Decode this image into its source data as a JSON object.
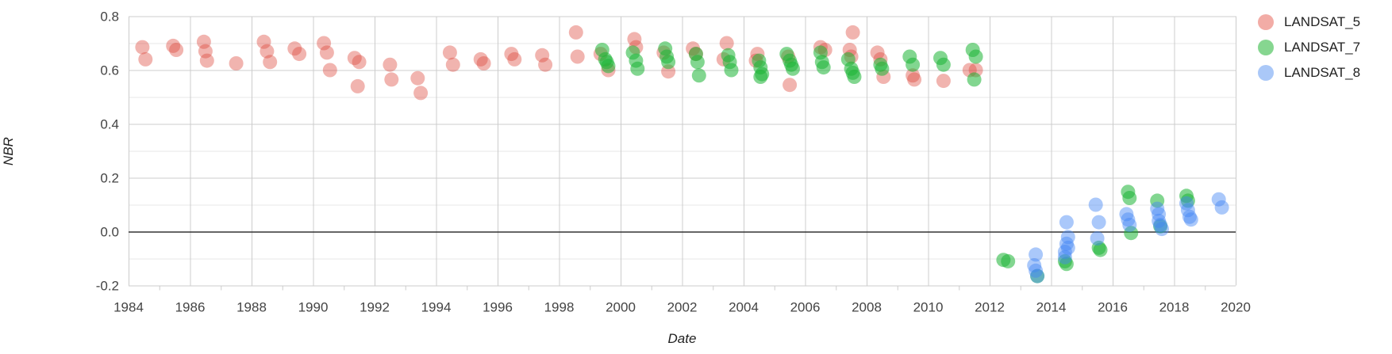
{
  "chart_data": {
    "type": "scatter",
    "title": "",
    "xlabel": "Date",
    "ylabel": "NBR",
    "xlim": [
      1984,
      2020
    ],
    "ylim": [
      -0.2,
      0.8
    ],
    "grid": true,
    "legend_position": "top-right",
    "zero_line": true,
    "x_ticks": {
      "major": [
        1984,
        1986,
        1988,
        1990,
        1992,
        1994,
        1996,
        1998,
        2000,
        2002,
        2004,
        2006,
        2008,
        2010,
        2012,
        2014,
        2016,
        2018,
        2020
      ],
      "minor": [
        1985,
        1987,
        1989,
        1991,
        1993,
        1995,
        1997,
        1999,
        2001,
        2003,
        2005,
        2007,
        2009,
        2011,
        2013,
        2015,
        2017,
        2019
      ]
    },
    "y_ticks": {
      "labels": [
        "-0.2",
        "0.0",
        "0.2",
        "0.4",
        "0.6",
        "0.8"
      ],
      "values": [
        -0.2,
        0.0,
        0.2,
        0.4,
        0.6,
        0.8
      ],
      "minor": [
        -0.1,
        0.1,
        0.3,
        0.5,
        0.7
      ]
    },
    "colors": {
      "grid_major": "#cccccc",
      "grid_minor": "#e7e7e7",
      "zero_line": "#333333",
      "tick_label": "#444444",
      "axis_title": "#222222",
      "legend_text": "#222222"
    },
    "series": [
      {
        "name": "LANDSAT_5",
        "color": "#DB4437",
        "opacity": 0.4,
        "legend_color": "#F2ACA6",
        "points": [
          [
            1984.45,
            0.685
          ],
          [
            1984.55,
            0.64
          ],
          [
            1985.45,
            0.69
          ],
          [
            1985.55,
            0.675
          ],
          [
            1986.45,
            0.705
          ],
          [
            1986.5,
            0.67
          ],
          [
            1986.55,
            0.635
          ],
          [
            1987.5,
            0.625
          ],
          [
            1988.4,
            0.705
          ],
          [
            1988.5,
            0.67
          ],
          [
            1988.6,
            0.63
          ],
          [
            1989.4,
            0.68
          ],
          [
            1989.55,
            0.66
          ],
          [
            1990.35,
            0.7
          ],
          [
            1990.45,
            0.665
          ],
          [
            1990.55,
            0.6
          ],
          [
            1991.35,
            0.645
          ],
          [
            1991.5,
            0.63
          ],
          [
            1991.45,
            0.54
          ],
          [
            1992.5,
            0.62
          ],
          [
            1992.55,
            0.565
          ],
          [
            1993.4,
            0.57
          ],
          [
            1993.5,
            0.515
          ],
          [
            1994.45,
            0.665
          ],
          [
            1994.55,
            0.62
          ],
          [
            1995.45,
            0.64
          ],
          [
            1995.55,
            0.625
          ],
          [
            1996.45,
            0.66
          ],
          [
            1996.55,
            0.64
          ],
          [
            1997.45,
            0.655
          ],
          [
            1997.55,
            0.62
          ],
          [
            1998.55,
            0.74
          ],
          [
            1998.6,
            0.65
          ],
          [
            1999.35,
            0.66
          ],
          [
            1999.6,
            0.6
          ],
          [
            2000.45,
            0.715
          ],
          [
            2000.5,
            0.685
          ],
          [
            2001.4,
            0.665
          ],
          [
            2001.55,
            0.595
          ],
          [
            2002.35,
            0.68
          ],
          [
            2002.45,
            0.66
          ],
          [
            2003.35,
            0.64
          ],
          [
            2003.45,
            0.7
          ],
          [
            2004.4,
            0.635
          ],
          [
            2004.45,
            0.66
          ],
          [
            2005.45,
            0.65
          ],
          [
            2005.5,
            0.545
          ],
          [
            2006.5,
            0.685
          ],
          [
            2006.65,
            0.675
          ],
          [
            2007.55,
            0.74
          ],
          [
            2007.45,
            0.675
          ],
          [
            2007.5,
            0.65
          ],
          [
            2008.35,
            0.665
          ],
          [
            2008.45,
            0.64
          ],
          [
            2008.55,
            0.575
          ],
          [
            2009.5,
            0.58
          ],
          [
            2009.55,
            0.565
          ],
          [
            2010.5,
            0.56
          ],
          [
            2011.35,
            0.6
          ],
          [
            2011.55,
            0.6
          ]
        ]
      },
      {
        "name": "LANDSAT_7",
        "color": "#1CB534",
        "opacity": 0.55,
        "legend_color": "#86D690",
        "points": [
          [
            1999.4,
            0.675
          ],
          [
            1999.5,
            0.64
          ],
          [
            1999.55,
            0.63
          ],
          [
            1999.6,
            0.615
          ],
          [
            2000.4,
            0.665
          ],
          [
            2000.5,
            0.635
          ],
          [
            2000.55,
            0.605
          ],
          [
            2001.45,
            0.68
          ],
          [
            2001.5,
            0.65
          ],
          [
            2001.55,
            0.63
          ],
          [
            2002.45,
            0.66
          ],
          [
            2002.5,
            0.63
          ],
          [
            2002.55,
            0.58
          ],
          [
            2003.5,
            0.655
          ],
          [
            2003.55,
            0.63
          ],
          [
            2003.6,
            0.6
          ],
          [
            2004.5,
            0.635
          ],
          [
            2004.55,
            0.61
          ],
          [
            2004.6,
            0.585
          ],
          [
            2004.55,
            0.575
          ],
          [
            2005.4,
            0.66
          ],
          [
            2005.5,
            0.635
          ],
          [
            2005.55,
            0.62
          ],
          [
            2005.6,
            0.605
          ],
          [
            2006.5,
            0.665
          ],
          [
            2006.55,
            0.63
          ],
          [
            2006.6,
            0.61
          ],
          [
            2007.4,
            0.64
          ],
          [
            2007.5,
            0.605
          ],
          [
            2007.55,
            0.59
          ],
          [
            2007.6,
            0.575
          ],
          [
            2008.45,
            0.62
          ],
          [
            2008.5,
            0.605
          ],
          [
            2009.4,
            0.65
          ],
          [
            2009.5,
            0.62
          ],
          [
            2010.4,
            0.645
          ],
          [
            2010.5,
            0.62
          ],
          [
            2011.45,
            0.675
          ],
          [
            2011.55,
            0.65
          ],
          [
            2011.5,
            0.565
          ],
          [
            2012.45,
            -0.105
          ],
          [
            2012.6,
            -0.11
          ],
          [
            2013.55,
            -0.165
          ],
          [
            2014.45,
            -0.11
          ],
          [
            2014.5,
            -0.12
          ],
          [
            2015.55,
            -0.06
          ],
          [
            2015.6,
            -0.068
          ],
          [
            2016.5,
            0.148
          ],
          [
            2016.55,
            0.125
          ],
          [
            2016.6,
            -0.005
          ],
          [
            2017.45,
            0.115
          ],
          [
            2017.55,
            0.02
          ],
          [
            2018.4,
            0.133
          ],
          [
            2018.45,
            0.115
          ]
        ]
      },
      {
        "name": "LANDSAT_8",
        "color": "#4285F4",
        "opacity": 0.45,
        "legend_color": "#AAC8F8",
        "points": [
          [
            2013.5,
            -0.085
          ],
          [
            2013.45,
            -0.125
          ],
          [
            2013.5,
            -0.145
          ],
          [
            2013.55,
            -0.165
          ],
          [
            2014.5,
            0.035
          ],
          [
            2014.55,
            -0.02
          ],
          [
            2014.5,
            -0.045
          ],
          [
            2014.55,
            -0.06
          ],
          [
            2014.45,
            -0.075
          ],
          [
            2014.45,
            -0.095
          ],
          [
            2015.45,
            0.1
          ],
          [
            2015.55,
            0.035
          ],
          [
            2015.5,
            -0.025
          ],
          [
            2016.45,
            0.065
          ],
          [
            2016.5,
            0.045
          ],
          [
            2016.55,
            0.025
          ],
          [
            2017.45,
            0.085
          ],
          [
            2017.5,
            0.065
          ],
          [
            2017.5,
            0.04
          ],
          [
            2017.55,
            0.025
          ],
          [
            2017.6,
            0.01
          ],
          [
            2018.4,
            0.105
          ],
          [
            2018.45,
            0.08
          ],
          [
            2018.5,
            0.055
          ],
          [
            2018.55,
            0.045
          ],
          [
            2019.45,
            0.12
          ],
          [
            2019.55,
            0.09
          ]
        ]
      }
    ]
  }
}
